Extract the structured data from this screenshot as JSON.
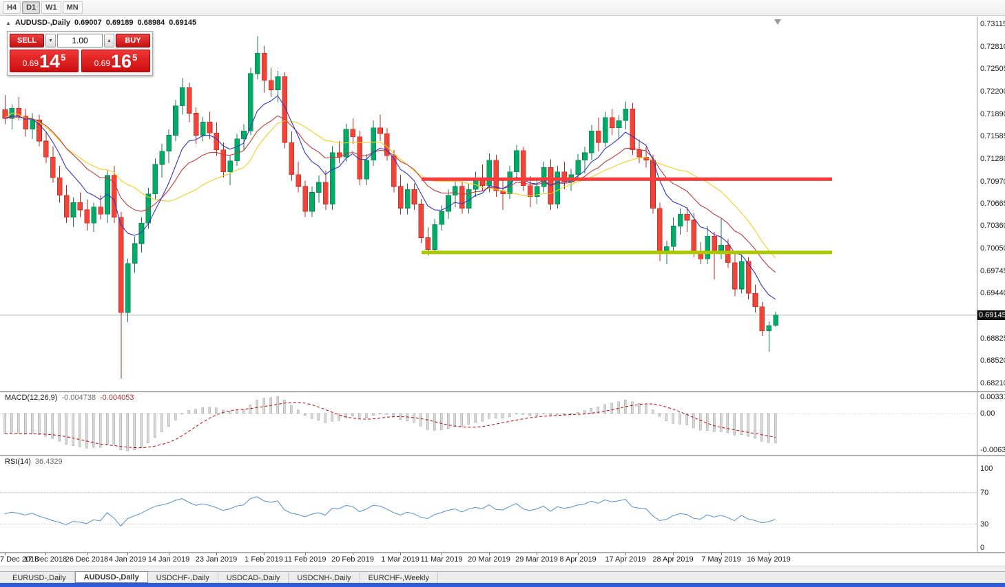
{
  "toolbar": {
    "timeframes": [
      {
        "label": "H4",
        "active": false
      },
      {
        "label": "D1",
        "active": true
      },
      {
        "label": "W1",
        "active": false
      },
      {
        "label": "MN",
        "active": false
      }
    ]
  },
  "chart": {
    "title": "AUDUSD-,Daily",
    "ohlc": {
      "open": "0.69007",
      "high": "0.69189",
      "low": "0.68984",
      "close": "0.69145"
    },
    "current_price": "0.69145",
    "price_axis_labels": [
      "0.73115",
      "0.72810",
      "0.72505",
      "0.72200",
      "0.71890",
      "0.71585",
      "0.71280",
      "0.70970",
      "0.70665",
      "0.70360",
      "0.70050",
      "0.69745",
      "0.69440",
      "0.68825",
      "0.68520",
      "0.68210"
    ]
  },
  "trade_panel": {
    "sell_label": "SELL",
    "buy_label": "BUY",
    "lot_value": "1.00",
    "sell_price": {
      "prefix": "0.69",
      "big": "14",
      "pip": "5"
    },
    "buy_price": {
      "prefix": "0.69",
      "big": "16",
      "pip": "5"
    }
  },
  "indicator_panels": {
    "macd": {
      "label": "MACD(12,26,9)",
      "value_main": "-0.004738",
      "value_signal": "-0.004053",
      "axis_labels": [
        "0.003319",
        "0.00",
        "-0.006325"
      ]
    },
    "rsi": {
      "label": "RSI(14)",
      "value": "36.4329",
      "axis_labels": [
        "100",
        "70",
        "30",
        "0"
      ]
    }
  },
  "tabs": [
    {
      "label": "EURUSD-,Daily",
      "active": false
    },
    {
      "label": "AUDUSD-,Daily",
      "active": true
    },
    {
      "label": "USDCHF-,Daily",
      "active": false
    },
    {
      "label": "USDCAD-,Daily",
      "active": false
    },
    {
      "label": "USDCNH-,Daily",
      "active": false
    },
    {
      "label": "EURCHF-,Weekly",
      "active": false
    }
  ],
  "chart_data": {
    "type": "candlestick",
    "symbol": "AUDUSD-",
    "timeframe": "Daily",
    "price_range": {
      "min": 0.6811,
      "max": 0.7322
    },
    "bull_color": "#00ab68",
    "bull_border": "#117a52",
    "bear_color": "#f14439",
    "bear_border": "#bf241b",
    "horizontal_levels": [
      {
        "name": "resistance",
        "price": 0.71,
        "color": "#f93b3b"
      },
      {
        "name": "support",
        "price": 0.7,
        "color": "#aac800"
      }
    ],
    "moving_averages": [
      {
        "type": "sma",
        "period": 20,
        "color": "#f0d01e"
      },
      {
        "type": "ema",
        "period": 16,
        "color": "#c23a3a"
      },
      {
        "type": "ema",
        "period": 8,
        "color": "#2d35c4"
      }
    ],
    "macd": {
      "fast": 12,
      "slow": 26,
      "signal": 9,
      "hist_fill": "#d8d8d8",
      "hist_border": "#9c9c9c",
      "signal_color": "#c00000"
    },
    "rsi": {
      "period": 14,
      "color": "#4f8fce",
      "levels": [
        70,
        30
      ]
    },
    "x_ticks": {
      "indices": [
        0,
        6,
        12,
        18,
        24,
        31,
        38,
        44,
        51,
        58,
        64,
        71,
        78,
        84,
        91,
        98,
        105,
        112
      ],
      "labels": [
        "7 Dec 2018",
        "17 Dec 2018",
        "26 Dec 2018",
        "4 Jan 2019",
        "14 Jan 2019",
        "23 Jan 2019",
        "1 Feb 2019",
        "11 Feb 2019",
        "20 Feb 2019",
        "1 Mar 2019",
        "11 Mar 2019",
        "20 Mar 2019",
        "29 Mar 2019",
        "8 Apr 2019",
        "17 Apr 2019",
        "28 Apr 2019",
        "7 May 2019",
        "16 May 2019"
      ]
    },
    "candles": [
      [
        0.7195,
        0.7215,
        0.7175,
        0.7183
      ],
      [
        0.7183,
        0.7202,
        0.7168,
        0.7197
      ],
      [
        0.7197,
        0.7212,
        0.718,
        0.7186
      ],
      [
        0.7186,
        0.7196,
        0.7158,
        0.7168
      ],
      [
        0.7168,
        0.719,
        0.7155,
        0.7181
      ],
      [
        0.7181,
        0.7188,
        0.7145,
        0.7152
      ],
      [
        0.7152,
        0.7165,
        0.7122,
        0.713
      ],
      [
        0.713,
        0.7145,
        0.7095,
        0.7102
      ],
      [
        0.7102,
        0.7118,
        0.7068,
        0.7078
      ],
      [
        0.7078,
        0.7092,
        0.704,
        0.7048
      ],
      [
        0.7048,
        0.7075,
        0.7035,
        0.7068
      ],
      [
        0.7068,
        0.7082,
        0.7048,
        0.7058
      ],
      [
        0.7058,
        0.7072,
        0.703,
        0.704
      ],
      [
        0.704,
        0.7068,
        0.7028,
        0.7062
      ],
      [
        0.7062,
        0.7078,
        0.7045,
        0.7052
      ],
      [
        0.7052,
        0.7112,
        0.704,
        0.7105
      ],
      [
        0.7105,
        0.7118,
        0.704,
        0.7048
      ],
      [
        0.7048,
        0.7055,
        0.6828,
        0.6918
      ],
      [
        0.6918,
        0.6992,
        0.6905,
        0.6985
      ],
      [
        0.6985,
        0.7022,
        0.6972,
        0.7012
      ],
      [
        0.7012,
        0.7048,
        0.7,
        0.704
      ],
      [
        0.704,
        0.7088,
        0.7032,
        0.708
      ],
      [
        0.708,
        0.7128,
        0.7072,
        0.712
      ],
      [
        0.712,
        0.7148,
        0.7102,
        0.7138
      ],
      [
        0.7138,
        0.7168,
        0.7122,
        0.716
      ],
      [
        0.716,
        0.7208,
        0.7152,
        0.72
      ],
      [
        0.72,
        0.7238,
        0.7188,
        0.7225
      ],
      [
        0.7225,
        0.7232,
        0.7178,
        0.719
      ],
      [
        0.719,
        0.7198,
        0.7148,
        0.716
      ],
      [
        0.716,
        0.7185,
        0.7152,
        0.7178
      ],
      [
        0.7178,
        0.7192,
        0.7155,
        0.7163
      ],
      [
        0.7163,
        0.7178,
        0.7132,
        0.714
      ],
      [
        0.714,
        0.715,
        0.7102,
        0.711
      ],
      [
        0.711,
        0.7132,
        0.7092,
        0.7125
      ],
      [
        0.7125,
        0.7162,
        0.7118,
        0.7155
      ],
      [
        0.7155,
        0.7175,
        0.714,
        0.7166
      ],
      [
        0.7166,
        0.7252,
        0.716,
        0.7244
      ],
      [
        0.7244,
        0.7295,
        0.7236,
        0.7272
      ],
      [
        0.7272,
        0.7282,
        0.7218,
        0.7235
      ],
      [
        0.7235,
        0.7252,
        0.7212,
        0.7222
      ],
      [
        0.7222,
        0.7248,
        0.7205,
        0.724
      ],
      [
        0.724,
        0.7246,
        0.7142,
        0.715
      ],
      [
        0.715,
        0.7165,
        0.7098,
        0.7106
      ],
      [
        0.7106,
        0.7124,
        0.7082,
        0.709
      ],
      [
        0.709,
        0.7098,
        0.7048,
        0.7056
      ],
      [
        0.7056,
        0.709,
        0.7048,
        0.7082
      ],
      [
        0.7082,
        0.7105,
        0.7068,
        0.7096
      ],
      [
        0.7096,
        0.7112,
        0.7058,
        0.7066
      ],
      [
        0.7066,
        0.7145,
        0.7058,
        0.7136
      ],
      [
        0.7136,
        0.7152,
        0.7122,
        0.713
      ],
      [
        0.713,
        0.7176,
        0.7124,
        0.7168
      ],
      [
        0.7168,
        0.7183,
        0.7148,
        0.7158
      ],
      [
        0.7158,
        0.7166,
        0.7092,
        0.71
      ],
      [
        0.71,
        0.7134,
        0.7092,
        0.7126
      ],
      [
        0.7126,
        0.718,
        0.7118,
        0.717
      ],
      [
        0.717,
        0.7188,
        0.7152,
        0.7162
      ],
      [
        0.7162,
        0.717,
        0.7125,
        0.7132
      ],
      [
        0.7132,
        0.714,
        0.7082,
        0.709
      ],
      [
        0.709,
        0.7106,
        0.7052,
        0.706
      ],
      [
        0.706,
        0.7094,
        0.7052,
        0.7086
      ],
      [
        0.7086,
        0.7094,
        0.7058,
        0.7066
      ],
      [
        0.7066,
        0.7073,
        0.7013,
        0.702
      ],
      [
        0.702,
        0.7034,
        0.6996,
        0.7004
      ],
      [
        0.7004,
        0.7046,
        0.6998,
        0.7038
      ],
      [
        0.7038,
        0.7064,
        0.703,
        0.7056
      ],
      [
        0.7056,
        0.7086,
        0.7046,
        0.7078
      ],
      [
        0.7078,
        0.7098,
        0.7062,
        0.709
      ],
      [
        0.709,
        0.7097,
        0.7053,
        0.706
      ],
      [
        0.706,
        0.7094,
        0.7053,
        0.7086
      ],
      [
        0.7086,
        0.711,
        0.7076,
        0.7102
      ],
      [
        0.7102,
        0.712,
        0.7084,
        0.7091
      ],
      [
        0.7091,
        0.7135,
        0.7082,
        0.7126
      ],
      [
        0.7126,
        0.7133,
        0.7076,
        0.7084
      ],
      [
        0.7084,
        0.71,
        0.7058,
        0.708
      ],
      [
        0.708,
        0.7118,
        0.7073,
        0.711
      ],
      [
        0.711,
        0.7147,
        0.71,
        0.7139
      ],
      [
        0.7139,
        0.7144,
        0.7084,
        0.7091
      ],
      [
        0.7091,
        0.7104,
        0.7062,
        0.7076
      ],
      [
        0.7076,
        0.7098,
        0.7066,
        0.709
      ],
      [
        0.709,
        0.7124,
        0.7082,
        0.7116
      ],
      [
        0.7116,
        0.7127,
        0.7058,
        0.7066
      ],
      [
        0.7066,
        0.7118,
        0.706,
        0.711
      ],
      [
        0.711,
        0.7124,
        0.7086,
        0.7096
      ],
      [
        0.7096,
        0.7114,
        0.7084,
        0.7106
      ],
      [
        0.7106,
        0.7134,
        0.7098,
        0.7126
      ],
      [
        0.7126,
        0.7144,
        0.7108,
        0.7136
      ],
      [
        0.7136,
        0.7174,
        0.7126,
        0.7166
      ],
      [
        0.7166,
        0.7184,
        0.7138,
        0.715
      ],
      [
        0.715,
        0.7192,
        0.7144,
        0.7184
      ],
      [
        0.7184,
        0.7196,
        0.716,
        0.717
      ],
      [
        0.717,
        0.7187,
        0.7156,
        0.718
      ],
      [
        0.718,
        0.7206,
        0.7168,
        0.7196
      ],
      [
        0.7196,
        0.7204,
        0.7133,
        0.714
      ],
      [
        0.714,
        0.7154,
        0.7122,
        0.713
      ],
      [
        0.713,
        0.7144,
        0.7116,
        0.7126
      ],
      [
        0.7126,
        0.7133,
        0.7053,
        0.706
      ],
      [
        0.706,
        0.7068,
        0.6988,
        0.7
      ],
      [
        0.7,
        0.7016,
        0.6984,
        0.7008
      ],
      [
        0.7008,
        0.7048,
        0.7,
        0.7036
      ],
      [
        0.7036,
        0.706,
        0.7024,
        0.7052
      ],
      [
        0.7052,
        0.7062,
        0.7028,
        0.7044
      ],
      [
        0.7044,
        0.7054,
        0.6993,
        0.7001
      ],
      [
        0.7001,
        0.7014,
        0.6984,
        0.6991
      ],
      [
        0.6991,
        0.7036,
        0.6984,
        0.7022
      ],
      [
        0.7022,
        0.7028,
        0.6963,
        0.6998
      ],
      [
        0.6998,
        0.7046,
        0.6991,
        0.701
      ],
      [
        0.701,
        0.7018,
        0.6979,
        0.6986
      ],
      [
        0.6986,
        0.7,
        0.694,
        0.695
      ],
      [
        0.695,
        0.6996,
        0.6944,
        0.6988
      ],
      [
        0.6988,
        0.6993,
        0.6936,
        0.6944
      ],
      [
        0.6944,
        0.6956,
        0.6918,
        0.6926
      ],
      [
        0.6926,
        0.6932,
        0.6886,
        0.6893
      ],
      [
        0.6893,
        0.6906,
        0.6864,
        0.69
      ],
      [
        0.69007,
        0.69189,
        0.68984,
        0.69145
      ]
    ]
  }
}
